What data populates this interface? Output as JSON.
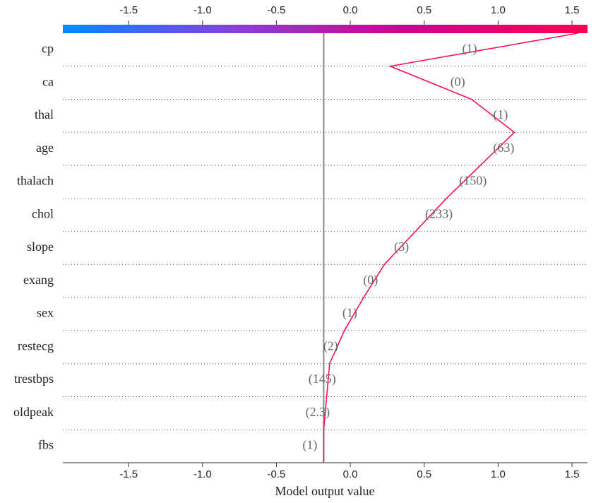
{
  "chart_data": {
    "type": "decision",
    "xlabel": "Model output value",
    "categories": [
      "cp",
      "ca",
      "thal",
      "age",
      "thalach",
      "chol",
      "slope",
      "exang",
      "sex",
      "restecg",
      "trestbps",
      "oldpeak",
      "fbs"
    ],
    "feature_values": [
      1,
      0,
      1,
      63,
      150,
      233,
      3,
      0,
      1,
      2,
      145,
      2.3,
      1
    ],
    "value_labels": [
      "(1)",
      "(0)",
      "(1)",
      "(63)",
      "(150)",
      "(233)",
      "(3)",
      "(0)",
      "(1)",
      "(2)",
      "(145)",
      "(2.3)",
      "(1)"
    ],
    "output_values": [
      1.54,
      0.27,
      0.82,
      1.11,
      0.88,
      0.65,
      0.44,
      0.23,
      0.09,
      -0.04,
      -0.14,
      -0.16,
      -0.18
    ],
    "base_value": -0.18,
    "color": "#ff0d57",
    "colormap": [
      "#008bfb",
      "#8b3fd6",
      "#d1008f",
      "#ff0052"
    ],
    "xlim": [
      -1.945,
      1.605
    ],
    "xticks": [
      {
        "value": -1.5,
        "label": "-1.5"
      },
      {
        "value": -1.0,
        "label": "-1.0"
      },
      {
        "value": -0.5,
        "label": "-0.5"
      },
      {
        "value": 0.0,
        "label": "0.0"
      },
      {
        "value": 0.5,
        "label": "0.5"
      },
      {
        "value": 1.0,
        "label": "1.0"
      },
      {
        "value": 1.5,
        "label": "1.5"
      }
    ]
  }
}
